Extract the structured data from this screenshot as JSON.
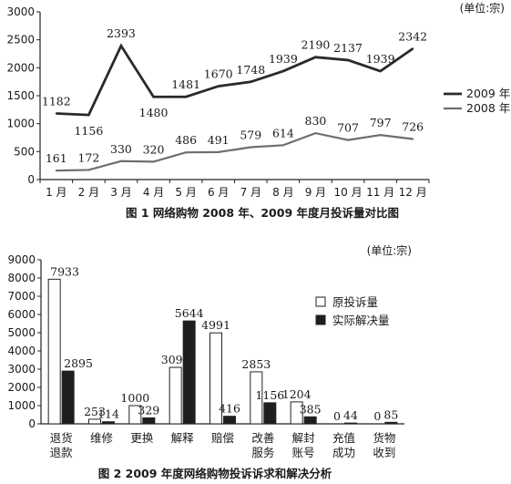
{
  "chart_data": [
    {
      "type": "line",
      "title": "图 1  网络购物 2008 年、2009 年度月投诉量对比图",
      "unit": "(单位:宗)",
      "categories": [
        "1 月",
        "2 月",
        "3 月",
        "4 月",
        "5 月",
        "6 月",
        "7 月",
        "8 月",
        "9 月",
        "10 月",
        "11 月",
        "12 月"
      ],
      "yticks": [
        "0",
        "500",
        "1000",
        "1500",
        "2000",
        "2500",
        "3000"
      ],
      "ylim": [
        0,
        3000
      ],
      "grid": false,
      "legend_position": "right",
      "series": [
        {
          "name": "2009 年",
          "values": [
            1182,
            1156,
            2393,
            1480,
            1481,
            1670,
            1748,
            1939,
            2190,
            2137,
            1939,
            2342
          ],
          "color": "#2a2a2a",
          "labels": [
            "1182",
            "1156",
            "2393",
            "1480",
            "1481",
            "1670",
            "1748",
            "1939",
            "2190",
            "2137",
            "1939",
            "2342"
          ]
        },
        {
          "name": "2008 年",
          "values": [
            161,
            172,
            330,
            320,
            486,
            491,
            579,
            614,
            830,
            707,
            797,
            726
          ],
          "color": "#6e6e6e",
          "labels": [
            "161",
            "172",
            "330",
            "320",
            "486",
            "491",
            "579",
            "614",
            "830",
            "707",
            "797",
            "726"
          ]
        }
      ]
    },
    {
      "type": "bar",
      "title": "图 2  2009 年度网络购物投诉诉求和解决分析",
      "unit": "(单位:宗)",
      "categories": [
        [
          "退货",
          "退款"
        ],
        [
          "维修"
        ],
        [
          "更换"
        ],
        [
          "解释"
        ],
        [
          "赔偿"
        ],
        [
          "改善",
          "服务"
        ],
        [
          "解封",
          "账号"
        ],
        [
          "充值",
          "成功"
        ],
        [
          "货物",
          "收到"
        ]
      ],
      "yticks": [
        "0",
        "1000",
        "2000",
        "3000",
        "4000",
        "5000",
        "6000",
        "7000",
        "8000",
        "9000"
      ],
      "ylim": [
        0,
        9000
      ],
      "grid": false,
      "legend_position": "right",
      "series": [
        {
          "name": "原投诉量",
          "values": [
            7933,
            253,
            1000,
            3096,
            4991,
            2853,
            1204,
            0,
            0
          ],
          "color": "#ffffff",
          "labels": [
            "7933",
            "253",
            "1000",
            "3096",
            "4991",
            "2853",
            "1204",
            "0",
            "0"
          ]
        },
        {
          "name": "实际解决量",
          "values": [
            2895,
            114,
            329,
            5644,
            416,
            1156,
            385,
            44,
            85
          ],
          "color": "#1e1e1e",
          "labels": [
            "2895",
            "114",
            "329",
            "5644",
            "416",
            "1156",
            "385",
            "44",
            "85"
          ]
        }
      ]
    }
  ]
}
